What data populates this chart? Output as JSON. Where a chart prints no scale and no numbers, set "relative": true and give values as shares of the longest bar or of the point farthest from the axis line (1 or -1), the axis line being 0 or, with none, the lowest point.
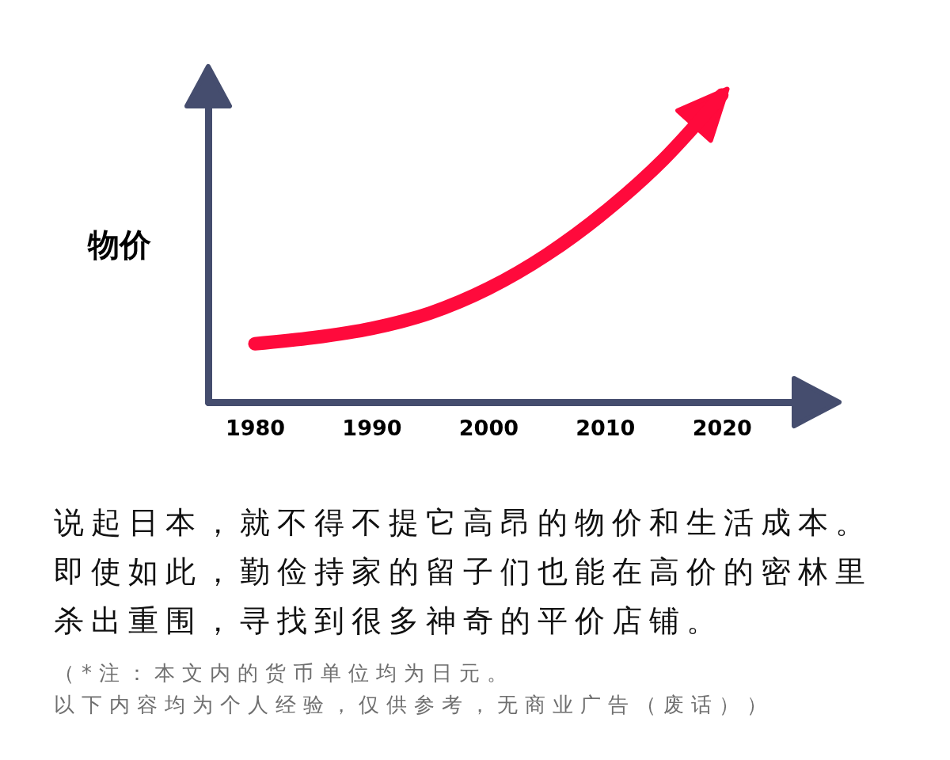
{
  "chart_data": {
    "type": "line",
    "ylabel": "物价",
    "x": [
      1980,
      1985,
      1990,
      1995,
      2000,
      2005,
      2010,
      2015,
      2020
    ],
    "series": [
      {
        "color": "#ff0a3c",
        "values": [
          0.19,
          0.21,
          0.24,
          0.29,
          0.37,
          0.48,
          0.62,
          0.79,
          1
        ]
      }
    ],
    "relative": true,
    "xlim": [
      1976,
      2027
    ],
    "xticks": [
      1980,
      1990,
      2000,
      2010,
      2020
    ],
    "grid": false,
    "marker": "none",
    "line_style": "solid",
    "annotations": [
      "说起日本，就不得不提它高昂的物价和生活成本。",
      "即使如此，勤俭持家的留子们也能在高价的密林里",
      "杀出重围，寻找到很多神奇的平价店铺。",
      "（*注：本文内的货币单位均为日元。",
      "以下内容均为个人经验，仅供参考，无商业广告（废话））"
    ]
  }
}
